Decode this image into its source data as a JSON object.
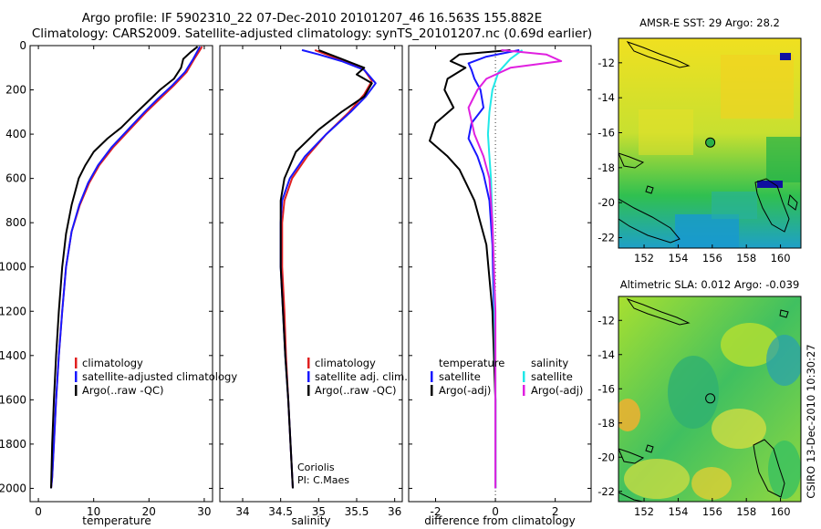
{
  "title": {
    "line1": "Argo profile: IF 5902310_22 07-Dec-2010 20101207_46 16.563S 155.882E",
    "line2": "Climatology: CARS2009. Satellite-adjusted climatology: synTS_20101207.nc (0.69d earlier)"
  },
  "colors": {
    "climatology": "#e02020",
    "satellite": "#1818ff",
    "argo": "#000000",
    "argo_adj": "#e020e0",
    "sal_satellite": "#20e8e8"
  },
  "depth_axis": {
    "ylim": [
      0,
      2060
    ],
    "ticks": [
      "0",
      "200",
      "400",
      "600",
      "800",
      "1000",
      "1200",
      "1400",
      "1600",
      "1800",
      "2000"
    ],
    "values": [
      0,
      200,
      400,
      600,
      800,
      1000,
      1200,
      1400,
      1600,
      1800,
      2000
    ]
  },
  "chart_data": [
    {
      "type": "line",
      "id": "temperature",
      "xlabel": "temperature",
      "xlim": [
        -1.5,
        31.5
      ],
      "xticks": [
        0,
        10,
        20,
        30
      ],
      "xtick_labels": [
        "0",
        "10",
        "20",
        "30"
      ],
      "legend": [
        "climatology",
        "satellite-adjusted climatology",
        "Argo(..raw -QC)"
      ],
      "series": [
        {
          "name": "climatology",
          "color": "#e02020",
          "x": [
            29.6,
            28.2,
            26.8,
            24.5,
            22,
            19.5,
            16.5,
            13.5,
            11,
            9.2,
            7.5,
            6,
            5,
            4.3,
            3.7,
            3.2,
            2.8,
            2.5,
            2.3
          ],
          "y": [
            5,
            60,
            120,
            180,
            240,
            300,
            380,
            460,
            540,
            620,
            720,
            840,
            1000,
            1200,
            1400,
            1600,
            1800,
            1950,
            2000
          ]
        },
        {
          "name": "satellite-adjusted climatology",
          "color": "#1818ff",
          "x": [
            29.2,
            28,
            26.5,
            24.2,
            21.6,
            19.2,
            16.2,
            13.2,
            10.8,
            9,
            7.4,
            6,
            5,
            4.3,
            3.7,
            3.2,
            2.8,
            2.5,
            2.3
          ],
          "y": [
            5,
            60,
            120,
            180,
            240,
            300,
            380,
            460,
            540,
            620,
            720,
            840,
            1000,
            1200,
            1400,
            1600,
            1800,
            1950,
            2000
          ]
        },
        {
          "name": "Argo(..raw -QC)",
          "color": "#000000",
          "x": [
            28.8,
            27.5,
            26.2,
            25.8,
            24.5,
            22,
            19.5,
            17,
            15,
            12.5,
            10,
            8.5,
            7.3,
            6,
            5,
            4.3,
            3.7,
            3.2,
            2.8,
            2.5,
            2.3
          ],
          "y": [
            5,
            30,
            60,
            100,
            150,
            200,
            260,
            320,
            370,
            420,
            480,
            540,
            600,
            720,
            850,
            1000,
            1200,
            1400,
            1600,
            1800,
            2000
          ]
        }
      ]
    },
    {
      "type": "line",
      "id": "salinity",
      "xlabel": "salinity",
      "xlim": [
        33.7,
        36.1
      ],
      "xticks": [
        34,
        34.5,
        35,
        35.5,
        36
      ],
      "xtick_labels": [
        "34",
        "34.5",
        "35",
        "35.5",
        "36"
      ],
      "legend": [
        "climatology",
        "satellite adj. clim.",
        "Argo(..raw -QC)"
      ],
      "annotation": [
        "Coriolis",
        "PI: C.Maes"
      ],
      "series": [
        {
          "name": "climatology",
          "color": "#e02020",
          "x": [
            34.95,
            35.1,
            35.35,
            35.6,
            35.7,
            35.6,
            35.4,
            35.1,
            34.85,
            34.65,
            34.55,
            34.52,
            34.52,
            34.55,
            34.57,
            34.6,
            34.63,
            34.66
          ],
          "y": [
            20,
            40,
            70,
            110,
            160,
            220,
            300,
            400,
            500,
            600,
            700,
            800,
            1000,
            1200,
            1400,
            1600,
            1800,
            2000
          ]
        },
        {
          "name": "satellite adj. clim.",
          "color": "#1818ff",
          "x": [
            34.78,
            35.0,
            35.3,
            35.6,
            35.75,
            35.62,
            35.42,
            35.1,
            34.82,
            34.62,
            34.52,
            34.5,
            34.5,
            34.53,
            34.56,
            34.6,
            34.63,
            34.66
          ],
          "y": [
            20,
            40,
            70,
            110,
            170,
            230,
            300,
            400,
            500,
            600,
            700,
            800,
            1000,
            1200,
            1400,
            1600,
            1800,
            2000
          ]
        },
        {
          "name": "Argo(..raw -QC)",
          "color": "#000000",
          "x": [
            35.0,
            35.3,
            35.6,
            35.5,
            35.7,
            35.6,
            35.3,
            35.0,
            34.7,
            34.55,
            34.5,
            34.5,
            34.5,
            34.53,
            34.56,
            34.6,
            34.63,
            34.66
          ],
          "y": [
            20,
            60,
            100,
            130,
            170,
            230,
            300,
            380,
            480,
            600,
            700,
            800,
            1000,
            1200,
            1400,
            1600,
            1800,
            2000
          ]
        }
      ]
    },
    {
      "type": "line",
      "id": "difference",
      "xlabel": "difference from climatology",
      "xlim": [
        -2.9,
        3.2
      ],
      "xticks": [
        -2,
        0,
        2
      ],
      "xtick_labels": [
        "-2",
        "0",
        "2"
      ],
      "legend_temperature": {
        "header": "temperature",
        "items": [
          "satellite",
          "Argo(-adj)"
        ]
      },
      "legend_salinity": {
        "header": "salinity",
        "items": [
          "satellite",
          "Argo(-adj)"
        ]
      },
      "series": [
        {
          "name": "temperature satellite",
          "color": "#1818ff",
          "x": [
            0.8,
            -0.3,
            -0.9,
            -0.8,
            -0.7,
            -0.5,
            -0.4,
            -0.8,
            -0.9,
            -0.6,
            -0.4,
            -0.2,
            -0.1,
            -0.05,
            0,
            0
          ],
          "y": [
            20,
            50,
            80,
            110,
            150,
            200,
            280,
            350,
            420,
            500,
            580,
            700,
            900,
            1200,
            1600,
            2000
          ]
        },
        {
          "name": "temperature Argo(-adj)",
          "color": "#000000",
          "x": [
            0.5,
            -1.2,
            -1.5,
            -1.0,
            -1.6,
            -1.7,
            -1.4,
            -2.0,
            -2.2,
            -1.6,
            -1.2,
            -0.7,
            -0.3,
            -0.1,
            0,
            0
          ],
          "y": [
            20,
            40,
            70,
            100,
            150,
            200,
            280,
            350,
            430,
            500,
            560,
            700,
            900,
            1200,
            1600,
            2000
          ]
        },
        {
          "name": "salinity satellite",
          "color": "#20e8e8",
          "x": [
            0.9,
            0.5,
            0.1,
            -0.1,
            -0.2,
            -0.25,
            -0.2,
            -0.15,
            -0.1,
            -0.05,
            0,
            0
          ],
          "y": [
            20,
            60,
            120,
            200,
            300,
            400,
            500,
            600,
            800,
            1000,
            1500,
            2000
          ]
        },
        {
          "name": "salinity Argo(-adj)",
          "color": "#e020e0",
          "x": [
            0.2,
            1.7,
            2.2,
            0.5,
            -0.3,
            -0.6,
            -0.9,
            -0.7,
            -0.4,
            -0.2,
            -0.1,
            0,
            0
          ],
          "y": [
            20,
            40,
            70,
            100,
            150,
            200,
            280,
            400,
            500,
            600,
            800,
            1200,
            2000
          ]
        }
      ]
    }
  ],
  "maps": [
    {
      "id": "sst-map",
      "title": "AMSR-E SST: 29 Argo: 28.2",
      "xticks": [
        "152",
        "154",
        "156",
        "158",
        "160"
      ],
      "xtick_values": [
        152,
        154,
        156,
        158,
        160
      ],
      "yticks": [
        "-12",
        "-14",
        "-16",
        "-18",
        "-20",
        "-22"
      ],
      "ytick_values": [
        -12,
        -14,
        -16,
        -18,
        -20,
        -22
      ],
      "lon_range": [
        150.5,
        161.2
      ],
      "lat_range": [
        -10.6,
        -22.6
      ],
      "marker": {
        "lon": 155.88,
        "lat": -16.56
      }
    },
    {
      "id": "sla-map",
      "title": "Altimetric SLA: 0.012 Argo: -0.039",
      "xticks": [
        "152",
        "154",
        "156",
        "158",
        "160"
      ],
      "xtick_values": [
        152,
        154,
        156,
        158,
        160
      ],
      "yticks": [
        "-12",
        "-14",
        "-16",
        "-18",
        "-20",
        "-22"
      ],
      "ytick_values": [
        -12,
        -14,
        -16,
        -18,
        -20,
        -22
      ],
      "lon_range": [
        150.5,
        161.2
      ],
      "lat_range": [
        -10.6,
        -22.6
      ],
      "marker": {
        "lon": 155.88,
        "lat": -16.56
      }
    }
  ],
  "credit": "CSIRO 13-Dec-2010 10:30:27"
}
